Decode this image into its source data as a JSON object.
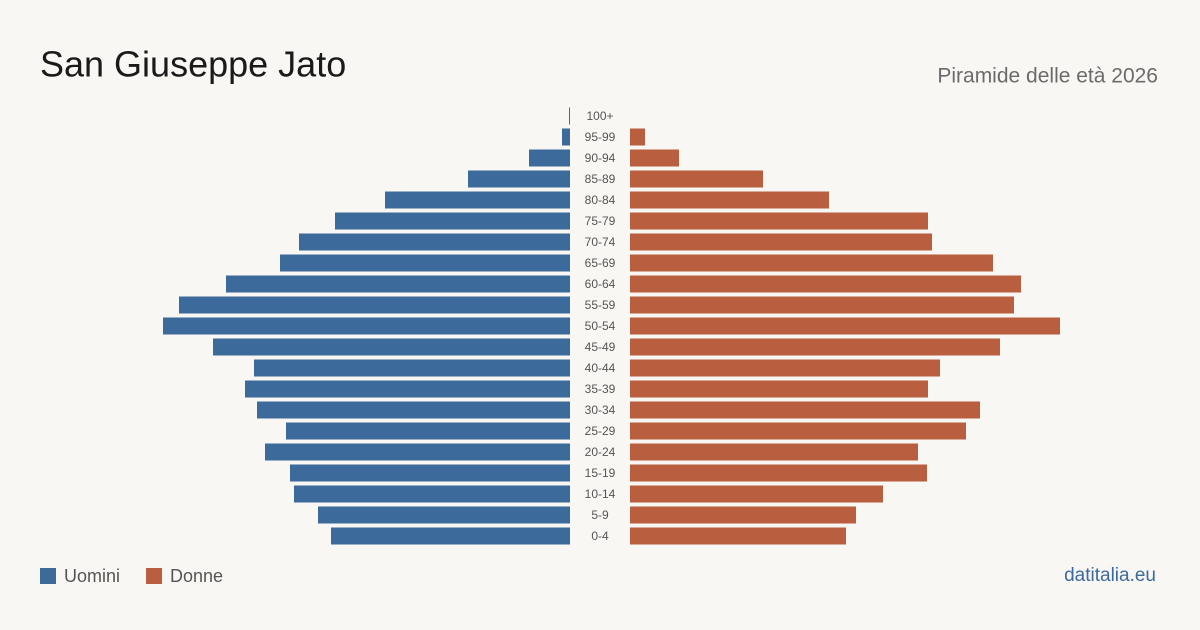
{
  "chart_data": {
    "type": "pyramid",
    "title": "San Giuseppe Jato",
    "subtitle": "Piramide delle età 2026",
    "categories": [
      "100+",
      "95-99",
      "90-94",
      "85-89",
      "80-84",
      "75-79",
      "70-74",
      "65-69",
      "60-64",
      "55-59",
      "50-54",
      "45-49",
      "40-44",
      "35-39",
      "30-34",
      "25-29",
      "20-24",
      "15-19",
      "10-14",
      "5-9",
      "0-4"
    ],
    "series": [
      {
        "name": "Uomini",
        "color": "#3b6a9b",
        "values": [
          1,
          8,
          41,
          102,
          185,
          235,
          271,
          290,
          344,
          391,
          407,
          357,
          316,
          325,
          313,
          284,
          305,
          280,
          276,
          252,
          239
        ]
      },
      {
        "name": "Donne",
        "color": "#b95e3e",
        "values": [
          0,
          15,
          49,
          133,
          199,
          298,
          302,
          363,
          391,
          384,
          430,
          370,
          310,
          298,
          350,
          336,
          288,
          297,
          253,
          226,
          216
        ]
      }
    ],
    "source": "datitalia.eu"
  }
}
